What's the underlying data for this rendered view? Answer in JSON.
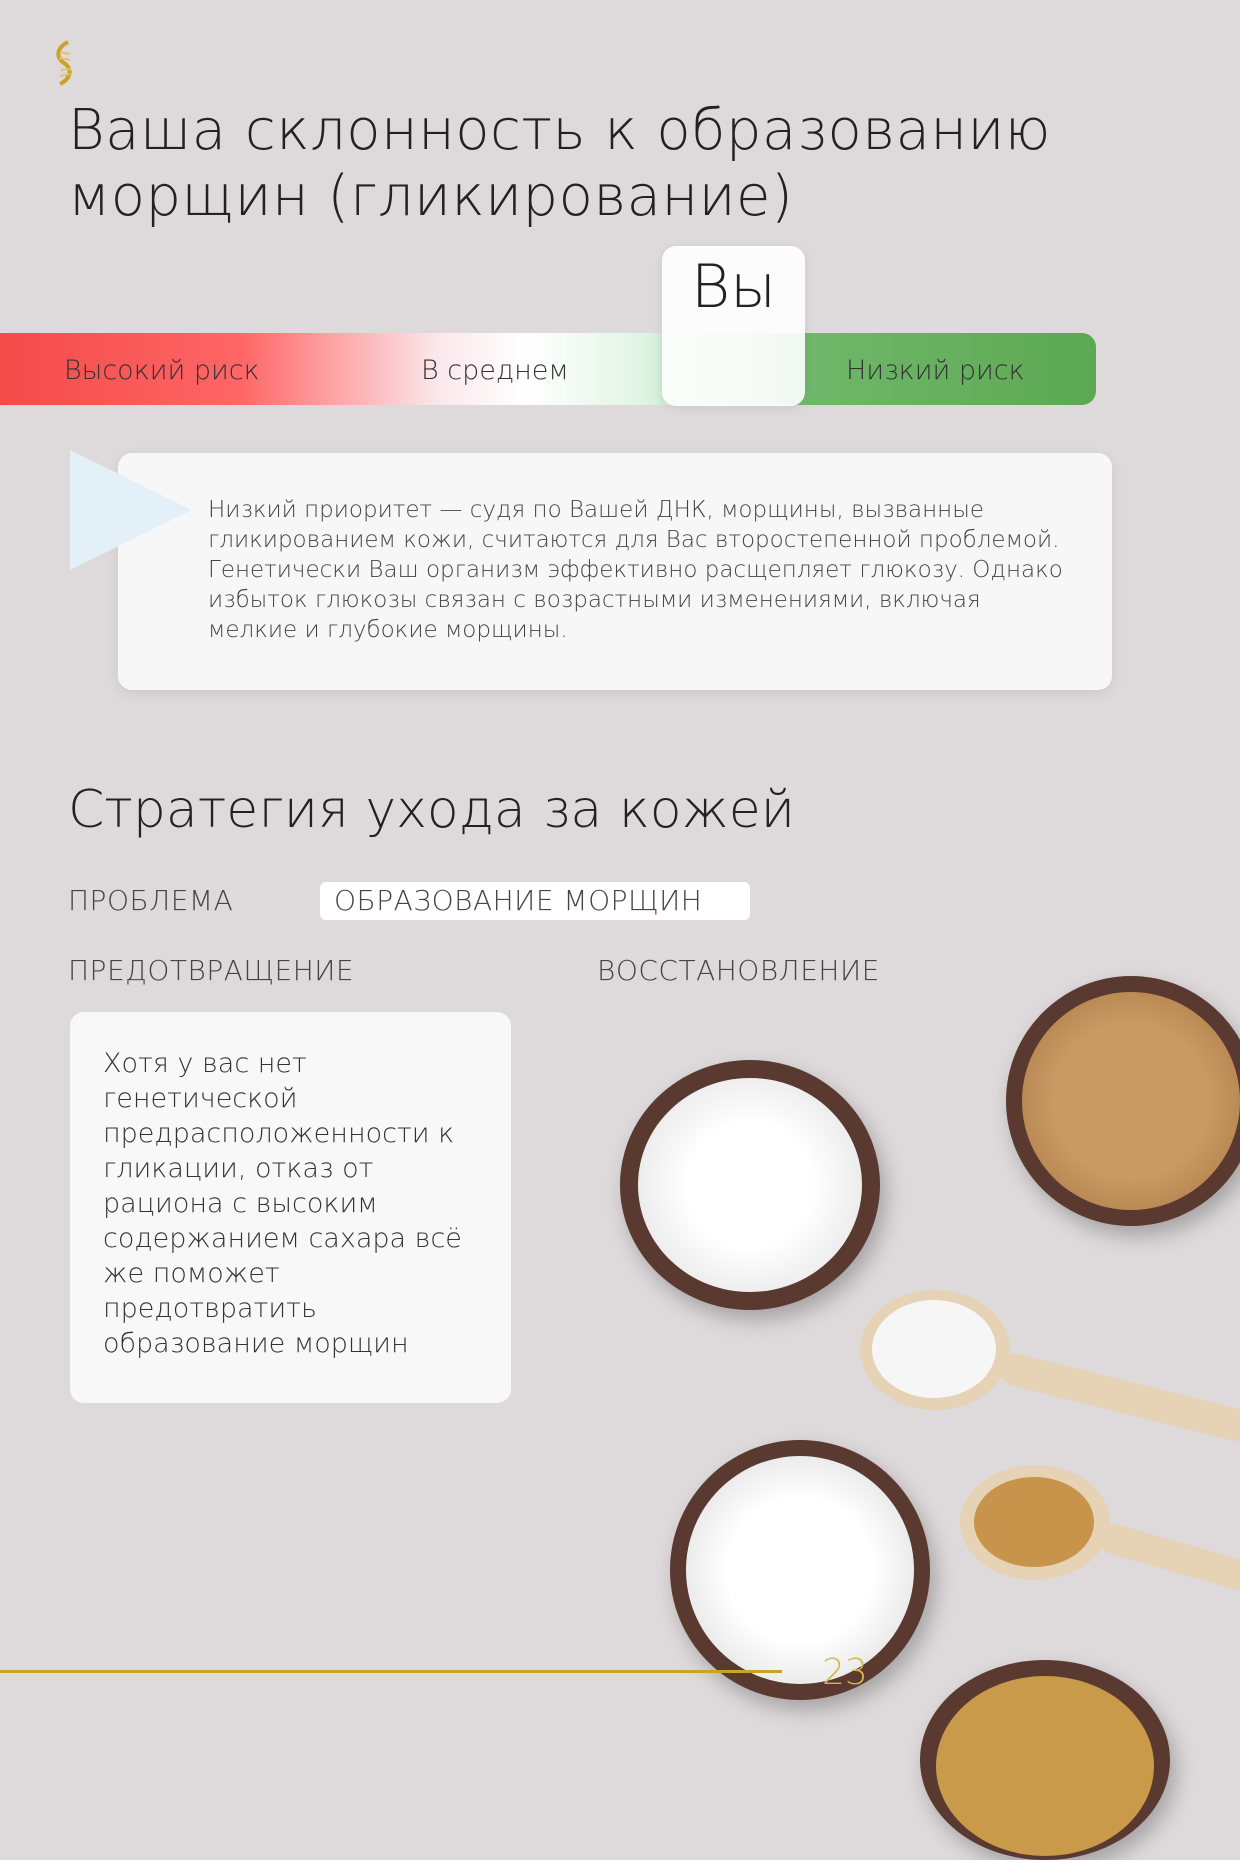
{
  "logo": {
    "icon": "dna-helix-icon",
    "color": "#c9a227"
  },
  "title": "Ваша склонность к образованию морщин (гликирование)",
  "risk_scale": {
    "labels": [
      "Высокий риск",
      "В среднем",
      "Низкий риск"
    ],
    "marker_label": "Вы",
    "marker_position": "between average and low risk",
    "colors": {
      "high": "#f44a4a",
      "low": "#5da853"
    }
  },
  "callout_text": "Низкий приоритет — судя по Вашей ДНК, морщины, вызванные гликированием кожи, считаются для Вас второстепенной проблемой. Генетически Ваш организм эффективно расщепляет глюкозу. Однако избыток глюкозы связан с возрастными изменениями, включая мелкие и глубокие морщины.",
  "strategy": {
    "heading": "Стратегия ухода за кожей",
    "problem_label": "ПРОБЛЕМА",
    "problem_value": "ОБРАЗОВАНИЕ МОРЩИН",
    "prevention_label": "ПРЕДОТВРАЩЕНИЕ",
    "recovery_label": "ВОССТАНОВЛЕНИЕ",
    "prevention_text": "Хотя у вас нет генетической предрасположенности к гликации, отказ от рациона с высоким содержанием сахара всё же поможет предотвратить образование морщин"
  },
  "footer": {
    "page_number": "23",
    "accent": "#c9a227"
  }
}
